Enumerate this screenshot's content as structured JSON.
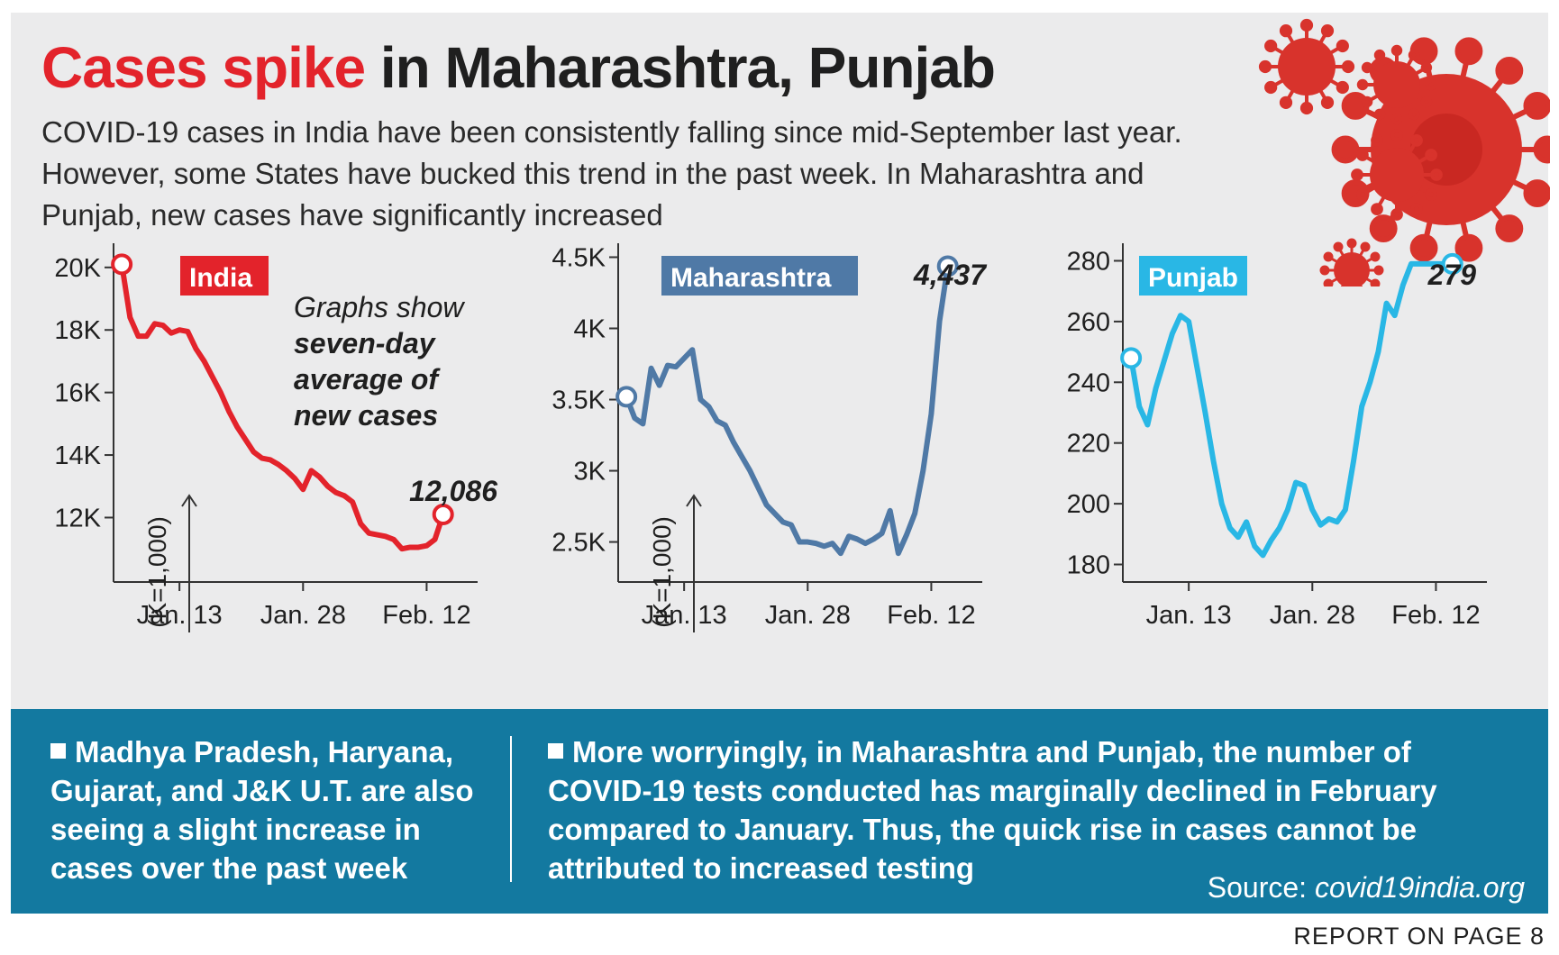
{
  "headline": {
    "highlight": "Cases spike",
    "rest": "in Maharashtra, Punjab"
  },
  "subtitle": "COVID-19 cases in India have been consistently falling since mid-September last year. However, some States have bucked this trend in the past week. In Maharashtra and Punjab, new cases have significantly increased",
  "colors": {
    "india": "#e3232b",
    "maharashtra": "#4f79a6",
    "punjab": "#29b7e5",
    "band": "#1379a0",
    "headline_red": "#e3232b",
    "virus": "#d8332c"
  },
  "note": {
    "line1": "Graphs show",
    "line2": "seven-day",
    "line3": "average of",
    "line4": "new cases"
  },
  "unit_label": "(K=1,000)",
  "chart_data": [
    {
      "type": "line",
      "title": "India",
      "x_tick_labels": [
        "Jan. 13",
        "Jan. 28",
        "Feb. 12"
      ],
      "x_tick_days": [
        7,
        22,
        37
      ],
      "y_tick_labels": [
        "20K",
        "18K",
        "16K",
        "14K",
        "12K"
      ],
      "y_tick_values": [
        20000,
        18000,
        16000,
        14000,
        12000
      ],
      "ylim": [
        10400,
        20600
      ],
      "xlim": [
        -1,
        41
      ],
      "end_label": "12,086",
      "ylabel": "(K=1,000)",
      "series": [
        {
          "name": "India",
          "values": [
            20100,
            18400,
            17800,
            17800,
            18200,
            18150,
            17900,
            18000,
            17950,
            17400,
            17000,
            16500,
            16000,
            15400,
            14900,
            14500,
            14100,
            13900,
            13850,
            13700,
            13500,
            13250,
            12900,
            13500,
            13300,
            13000,
            12800,
            12700,
            12500,
            11800,
            11500,
            11450,
            11400,
            11300,
            11000,
            11050,
            11050,
            11100,
            11300,
            12100
          ]
        }
      ]
    },
    {
      "type": "line",
      "title": "Maharashtra",
      "x_tick_labels": [
        "Jan. 13",
        "Jan. 28",
        "Feb. 12"
      ],
      "x_tick_days": [
        7,
        22,
        37
      ],
      "y_tick_labels": [
        "4.5K",
        "4K",
        "3.5K",
        "3K",
        "2.5K"
      ],
      "y_tick_values": [
        4500,
        4000,
        3500,
        3000,
        2500
      ],
      "ylim": [
        2320,
        4560
      ],
      "xlim": [
        -1,
        41
      ],
      "end_label": "4,437",
      "ylabel": "(K=1,000)",
      "series": [
        {
          "name": "Maharashtra",
          "values": [
            3520,
            3370,
            3330,
            3720,
            3600,
            3740,
            3730,
            3790,
            3850,
            3500,
            3450,
            3350,
            3320,
            3200,
            3100,
            3000,
            2880,
            2760,
            2700,
            2640,
            2620,
            2500,
            2500,
            2490,
            2470,
            2490,
            2420,
            2540,
            2520,
            2490,
            2520,
            2560,
            2720,
            2420,
            2550,
            2700,
            3000,
            3400,
            4050,
            4437
          ]
        }
      ]
    },
    {
      "type": "line",
      "title": "Punjab",
      "x_tick_labels": [
        "Jan. 13",
        "Jan. 28",
        "Feb. 12"
      ],
      "x_tick_days": [
        7,
        22,
        37
      ],
      "y_tick_labels": [
        "280",
        "260",
        "240",
        "220",
        "200",
        "180"
      ],
      "y_tick_values": [
        280,
        260,
        240,
        220,
        200,
        180
      ],
      "ylim": [
        176,
        284
      ],
      "xlim": [
        -1,
        41
      ],
      "end_label": "279",
      "ylabel": "",
      "series": [
        {
          "name": "Punjab",
          "values": [
            248,
            232,
            226,
            238,
            247,
            256,
            262,
            260,
            245,
            230,
            214,
            200,
            192,
            189,
            194,
            186,
            183,
            188,
            192,
            198,
            207,
            206,
            198,
            193,
            195,
            194,
            198,
            214,
            232,
            240,
            250,
            266,
            262,
            272,
            279,
            279,
            279,
            279,
            279,
            279
          ]
        }
      ]
    }
  ],
  "footer": {
    "point1": "Madhya Pradesh, Haryana, Gujarat, and J&K U.T. are also seeing a slight increase in cases over the past week",
    "point2": "More worryingly, in Maharashtra and Punjab, the number of COVID-19 tests conducted has marginally declined in February compared to January. Thus, the quick rise in cases cannot be attributed to increased testing",
    "source_prefix": "Source: ",
    "source_site": "covid19india.org"
  },
  "report_note": "REPORT ON PAGE 8"
}
